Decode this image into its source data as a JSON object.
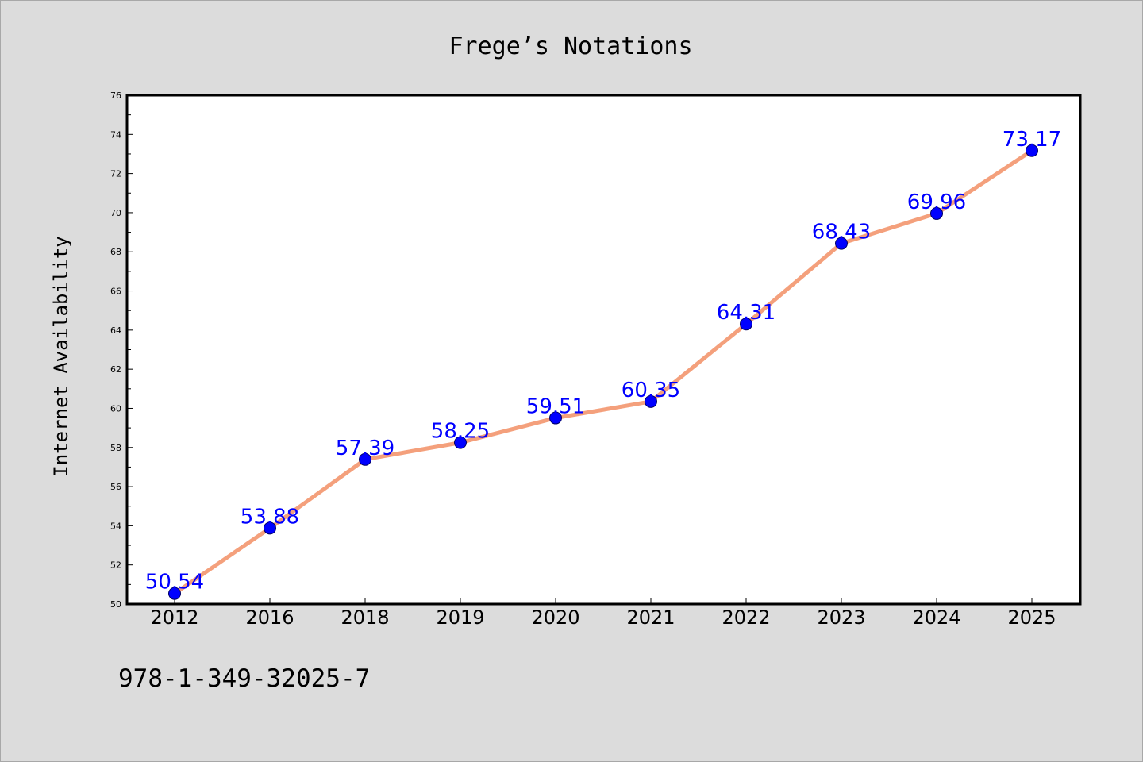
{
  "footer": {
    "isbn": "978-1-349-32025-7"
  },
  "chart_data": {
    "type": "line",
    "title": "Frege’s Notations",
    "xlabel": "",
    "ylabel": "Internet Availability",
    "categories": [
      "2012",
      "2016",
      "2018",
      "2019",
      "2020",
      "2021",
      "2022",
      "2023",
      "2024",
      "2025"
    ],
    "series": [
      {
        "values": [
          50.54,
          53.88,
          57.39,
          58.25,
          59.51,
          60.35,
          64.31,
          68.43,
          69.96,
          73.17
        ],
        "labels": [
          "50.54",
          "53.88",
          "57.39",
          "58.25",
          "59.51",
          "60.35",
          "64.31",
          "68.43",
          "69.96",
          "73.17"
        ]
      }
    ],
    "ylim": [
      50,
      76
    ],
    "yticks": [
      "50",
      "52",
      "54",
      "56",
      "58",
      "60",
      "62",
      "64",
      "66",
      "68",
      "70",
      "72",
      "74",
      "76"
    ],
    "grid": false,
    "colors": {
      "line": "#f4a07c",
      "marker": "#0000ff",
      "marker_edge": "#000066",
      "label": "#0000ff",
      "background": "#dcdcdc",
      "plot_area": "#ffffff"
    }
  }
}
